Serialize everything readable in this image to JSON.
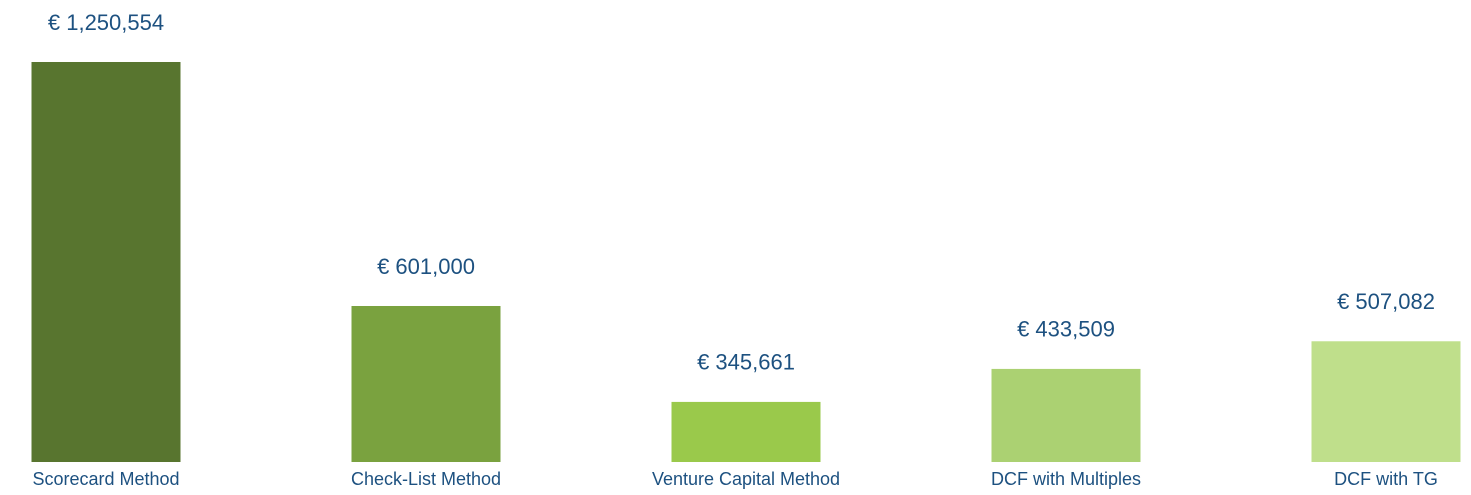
{
  "chart_data": {
    "type": "bar",
    "categories": [
      "Scorecard Method",
      "Check-List Method",
      "Venture Capital Method",
      "DCF with Multiples",
      "DCF with TG"
    ],
    "values": [
      1250554,
      601000,
      345661,
      433509,
      507082
    ],
    "value_labels": [
      "€ 1,250,554",
      "€ 601,000",
      "€ 345,661",
      "€ 433,509",
      "€ 507,082"
    ],
    "colors": [
      "#58752f",
      "#7aa23f",
      "#9ac94b",
      "#abd172",
      "#bfdf8b"
    ],
    "ylim": [
      185700,
      1250554
    ]
  }
}
